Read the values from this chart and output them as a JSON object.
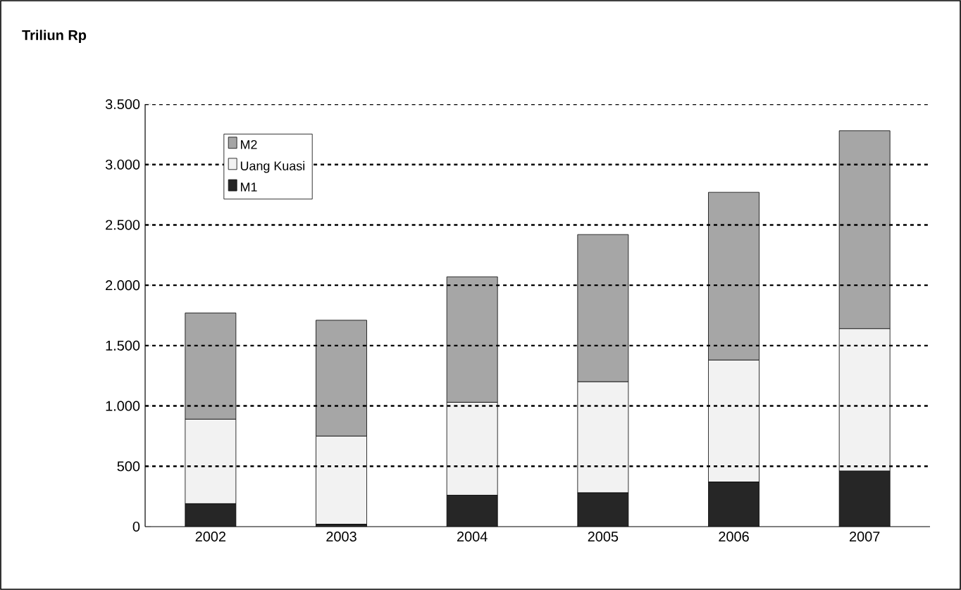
{
  "chart_data": {
    "type": "bar",
    "stacked": true,
    "ylabel": "Triliun Rp",
    "categories": [
      "2002",
      "2003",
      "2004",
      "2005",
      "2006",
      "2007"
    ],
    "series": [
      {
        "name": "M1",
        "color": "#262626",
        "values": [
          190,
          20,
          260,
          280,
          370,
          460
        ]
      },
      {
        "name": "Uang Kuasi",
        "color": "#f2f2f2",
        "values": [
          700,
          730,
          770,
          920,
          1010,
          1180
        ]
      },
      {
        "name": "M2",
        "color": "#a6a6a6",
        "values": [
          880,
          960,
          1040,
          1220,
          1390,
          1640
        ]
      }
    ],
    "ylim": [
      0,
      3500
    ],
    "yticks": [
      {
        "value": 0,
        "label": "0"
      },
      {
        "value": 500,
        "label": "500"
      },
      {
        "value": 1000,
        "label": "1.000"
      },
      {
        "value": 1500,
        "label": "1.500"
      },
      {
        "value": 2000,
        "label": "2.000"
      },
      {
        "value": 2500,
        "label": "2.500"
      },
      {
        "value": 3000,
        "label": "3.000"
      },
      {
        "value": 3500,
        "label": "3.500"
      }
    ],
    "grid": "y",
    "legend": "top left"
  }
}
